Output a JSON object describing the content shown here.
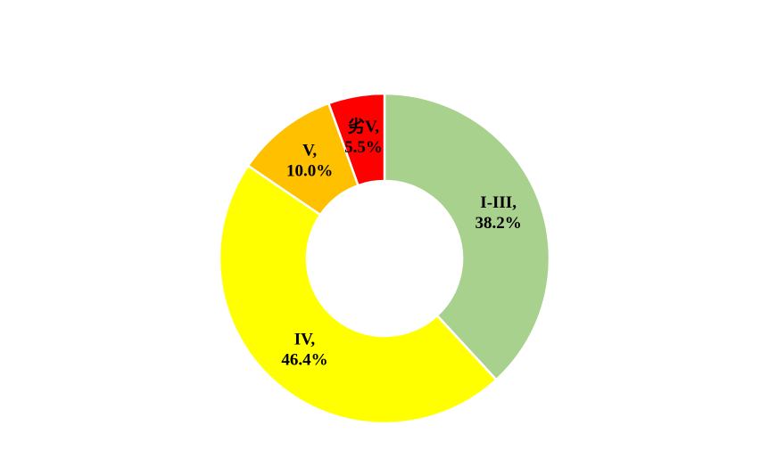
{
  "chart_data": {
    "type": "donut",
    "categories": [
      "I-III",
      "IV",
      "V",
      "劣V"
    ],
    "label_separator": ",",
    "values": [
      38.2,
      46.4,
      10.0,
      5.5
    ],
    "value_labels": [
      "38.2%",
      "46.4%",
      "10.0%",
      "5.5%"
    ],
    "colors": [
      "#a9d18e",
      "#ffff00",
      "#ffc000",
      "#ff0000"
    ]
  }
}
